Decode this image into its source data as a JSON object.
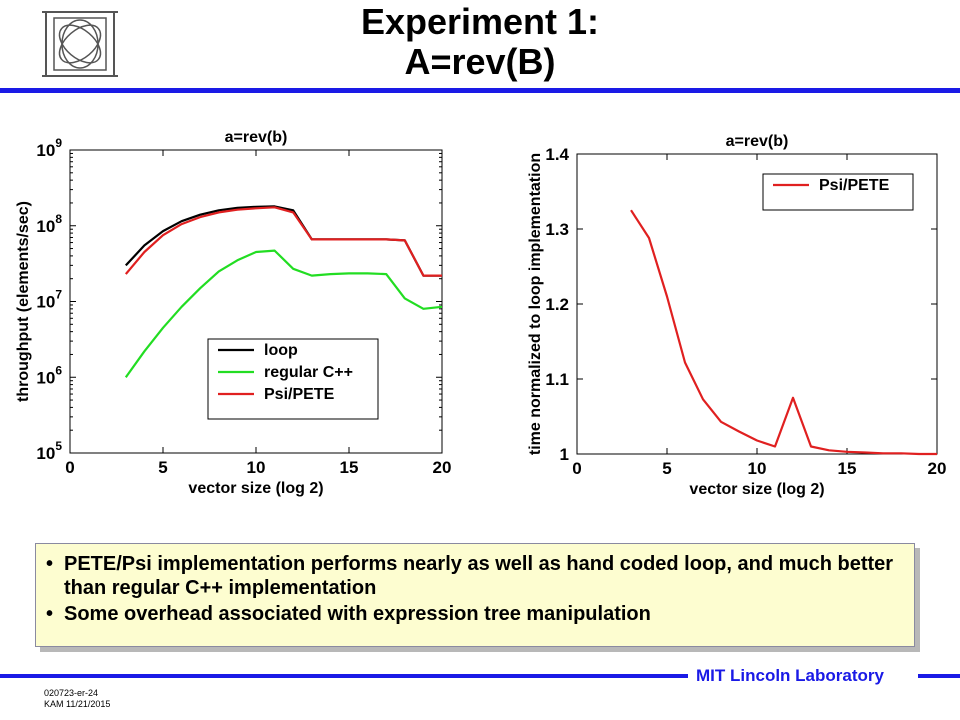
{
  "slide": {
    "title_line1": "Experiment 1:",
    "title_line2": "A=rev(B)",
    "bullets": [
      "PETE/Psi implementation performs nearly as well as hand coded loop, and much better than regular C++ implementation",
      "Some overhead associated with expression tree manipulation"
    ],
    "footer_lab": "MIT Lincoln Laboratory",
    "footer_code": "020723-er-24",
    "footer_author_date": "KAM 11/21/2015",
    "logo": "mit-lincoln-logo"
  },
  "chart_data": [
    {
      "type": "line",
      "title": "a=rev(b)",
      "xlabel": "vector size (log 2)",
      "ylabel": "throughput (elements/sec)",
      "xlim": [
        0,
        20
      ],
      "ylim": [
        100000,
        1000000000
      ],
      "yscale": "log",
      "xticks": [
        "0",
        "5",
        "10",
        "15",
        "20"
      ],
      "yticks": [
        {
          "base": "10",
          "exp": "5",
          "value": 100000
        },
        {
          "base": "10",
          "exp": "6",
          "value": 1000000
        },
        {
          "base": "10",
          "exp": "7",
          "value": 10000000
        },
        {
          "base": "10",
          "exp": "8",
          "value": 100000000
        },
        {
          "base": "10",
          "exp": "9",
          "value": 1000000000
        }
      ],
      "legend_position": "lower-right",
      "grid": false,
      "x": [
        3,
        4,
        5,
        6,
        7,
        8,
        9,
        10,
        11,
        12,
        13,
        14,
        15,
        16,
        17,
        18,
        19,
        20
      ],
      "series": [
        {
          "name": "loop",
          "color": "#000000",
          "values": [
            30000000,
            55000000,
            85000000,
            115000000,
            140000000,
            160000000,
            172000000,
            178000000,
            180000000,
            160000000,
            66000000,
            66000000,
            66000000,
            66000000,
            66000000,
            64000000,
            22000000,
            22000000
          ]
        },
        {
          "name": "regular C++",
          "color": "#22dd22",
          "values": [
            1000000,
            2200000,
            4500000,
            8500000,
            15000000,
            25000000,
            35000000,
            45000000,
            47000000,
            27000000,
            22000000,
            23000000,
            23500000,
            23500000,
            23000000,
            11000000,
            8000000,
            8500000
          ]
        },
        {
          "name": "Psi/PETE",
          "color": "#e02020",
          "values": [
            23000000,
            45000000,
            75000000,
            105000000,
            130000000,
            150000000,
            163000000,
            170000000,
            175000000,
            150000000,
            66000000,
            66000000,
            66000000,
            66000000,
            66000000,
            64000000,
            22000000,
            22000000
          ]
        }
      ]
    },
    {
      "type": "line",
      "title": "a=rev(b)",
      "xlabel": "vector size (log 2)",
      "ylabel": "time normalized to loop implementation",
      "xlim": [
        0,
        20
      ],
      "ylim": [
        1,
        1.4
      ],
      "xticks": [
        "0",
        "5",
        "10",
        "15",
        "20"
      ],
      "yticks": [
        "1",
        "1.1",
        "1.2",
        "1.3",
        "1.4"
      ],
      "legend_position": "top-right",
      "grid": false,
      "x": [
        3,
        4,
        5,
        6,
        7,
        8,
        9,
        10,
        11,
        12,
        13,
        14,
        15,
        16,
        17,
        18,
        19,
        20
      ],
      "series": [
        {
          "name": "Psi/PETE",
          "color": "#e02020",
          "values": [
            1.325,
            1.288,
            1.21,
            1.122,
            1.073,
            1.043,
            1.03,
            1.018,
            1.01,
            1.075,
            1.01,
            1.005,
            1.003,
            1.002,
            1.001,
            1.001,
            1.0,
            1.0
          ]
        }
      ]
    }
  ]
}
